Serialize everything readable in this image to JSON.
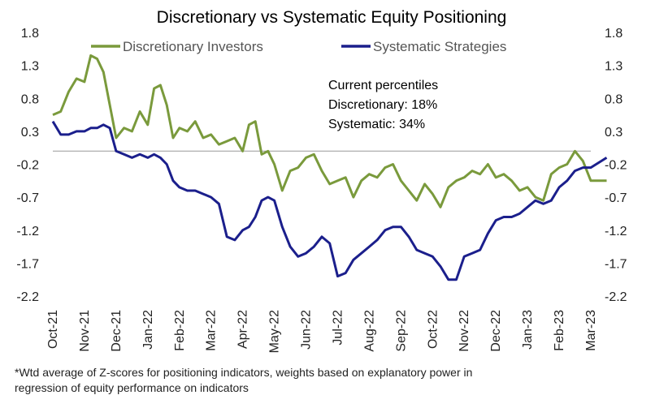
{
  "chart_data": {
    "type": "line",
    "title": "Discretionary  vs Systematic Equity Positioning",
    "ylim": [
      -2.2,
      1.8
    ],
    "yticks": [
      "1.8",
      "1.3",
      "0.8",
      "0.3",
      "-0.2",
      "-0.7",
      "-1.2",
      "-1.7",
      "-2.2"
    ],
    "x_ticks": [
      "Oct-21",
      "Nov-21",
      "Dec-21",
      "Jan-22",
      "Feb-22",
      "Mar-22",
      "Apr-22",
      "May-22",
      "Jun-22",
      "Jul-22",
      "Aug-22",
      "Sep-22",
      "Oct-22",
      "Nov-22",
      "Dec-22",
      "Jan-23",
      "Feb-23",
      "Mar-23"
    ],
    "colors": {
      "discretionary": "#7A9A3C",
      "systematic": "#1B1F8C",
      "zero_line": "#999999"
    },
    "series": [
      {
        "name": "Discretionary Investors",
        "x": [
          "Oct-21",
          "Oct-21",
          "Oct-21",
          "Oct-21",
          "Nov-21",
          "Nov-21",
          "Nov-21",
          "Nov-21",
          "Nov-21",
          "Dec-21",
          "Dec-21",
          "Dec-21",
          "Dec-21",
          "Jan-22",
          "Jan-22",
          "Jan-22",
          "Jan-22",
          "Jan-22",
          "Feb-22",
          "Feb-22",
          "Feb-22",
          "Feb-22",
          "Mar-22",
          "Mar-22",
          "Mar-22",
          "Mar-22",
          "Apr-22",
          "Apr-22",
          "Apr-22",
          "Apr-22",
          "Apr-22",
          "May-22",
          "May-22",
          "May-22",
          "May-22",
          "Jun-22",
          "Jun-22",
          "Jun-22",
          "Jun-22",
          "Jul-22",
          "Jul-22",
          "Jul-22",
          "Jul-22",
          "Aug-22",
          "Aug-22",
          "Aug-22",
          "Aug-22",
          "Sep-22",
          "Sep-22",
          "Sep-22",
          "Sep-22",
          "Oct-22",
          "Oct-22",
          "Oct-22",
          "Oct-22",
          "Nov-22",
          "Nov-22",
          "Nov-22",
          "Nov-22",
          "Dec-22",
          "Dec-22",
          "Dec-22",
          "Dec-22",
          "Jan-23",
          "Jan-23",
          "Jan-23",
          "Jan-23",
          "Feb-23",
          "Feb-23",
          "Feb-23",
          "Feb-23",
          "Mar-23",
          "Mar-23"
        ],
        "values": [
          0.55,
          0.6,
          0.9,
          1.1,
          1.05,
          1.45,
          1.4,
          1.2,
          0.7,
          0.2,
          0.35,
          0.3,
          0.6,
          0.4,
          0.95,
          1.0,
          0.7,
          0.2,
          0.35,
          0.3,
          0.45,
          0.2,
          0.25,
          0.1,
          0.15,
          0.2,
          0.0,
          0.4,
          0.45,
          -0.05,
          0.0,
          -0.2,
          -0.6,
          -0.3,
          -0.25,
          -0.1,
          -0.05,
          -0.3,
          -0.5,
          -0.45,
          -0.4,
          -0.7,
          -0.45,
          -0.35,
          -0.4,
          -0.25,
          -0.2,
          -0.45,
          -0.6,
          -0.75,
          -0.5,
          -0.65,
          -0.85,
          -0.55,
          -0.45,
          -0.4,
          -0.3,
          -0.35,
          -0.2,
          -0.4,
          -0.35,
          -0.45,
          -0.6,
          -0.55,
          -0.7,
          -0.75,
          -0.35,
          -0.25,
          -0.2,
          0.0,
          -0.15,
          -0.45,
          -0.45
        ]
      },
      {
        "name": "Systematic Strategies",
        "x": [
          "Oct-21",
          "Oct-21",
          "Oct-21",
          "Oct-21",
          "Nov-21",
          "Nov-21",
          "Nov-21",
          "Nov-21",
          "Nov-21",
          "Dec-21",
          "Dec-21",
          "Dec-21",
          "Dec-21",
          "Jan-22",
          "Jan-22",
          "Jan-22",
          "Jan-22",
          "Jan-22",
          "Feb-22",
          "Feb-22",
          "Feb-22",
          "Feb-22",
          "Mar-22",
          "Mar-22",
          "Mar-22",
          "Mar-22",
          "Apr-22",
          "Apr-22",
          "Apr-22",
          "Apr-22",
          "Apr-22",
          "May-22",
          "May-22",
          "May-22",
          "May-22",
          "Jun-22",
          "Jun-22",
          "Jun-22",
          "Jun-22",
          "Jul-22",
          "Jul-22",
          "Jul-22",
          "Jul-22",
          "Aug-22",
          "Aug-22",
          "Aug-22",
          "Aug-22",
          "Sep-22",
          "Sep-22",
          "Sep-22",
          "Sep-22",
          "Oct-22",
          "Oct-22",
          "Oct-22",
          "Oct-22",
          "Nov-22",
          "Nov-22",
          "Nov-22",
          "Nov-22",
          "Dec-22",
          "Dec-22",
          "Dec-22",
          "Dec-22",
          "Jan-23",
          "Jan-23",
          "Jan-23",
          "Jan-23",
          "Feb-23",
          "Feb-23",
          "Feb-23",
          "Feb-23",
          "Mar-23",
          "Mar-23"
        ],
        "values": [
          0.45,
          0.25,
          0.25,
          0.3,
          0.3,
          0.35,
          0.35,
          0.4,
          0.35,
          0.0,
          -0.05,
          -0.1,
          -0.05,
          -0.1,
          -0.05,
          -0.1,
          -0.2,
          -0.45,
          -0.55,
          -0.6,
          -0.6,
          -0.65,
          -0.7,
          -0.8,
          -1.3,
          -1.35,
          -1.2,
          -1.15,
          -1.0,
          -0.75,
          -0.7,
          -0.75,
          -1.15,
          -1.45,
          -1.6,
          -1.55,
          -1.45,
          -1.3,
          -1.4,
          -1.9,
          -1.85,
          -1.65,
          -1.55,
          -1.45,
          -1.35,
          -1.2,
          -1.15,
          -1.15,
          -1.3,
          -1.5,
          -1.55,
          -1.6,
          -1.75,
          -1.95,
          -1.95,
          -1.6,
          -1.55,
          -1.5,
          -1.25,
          -1.05,
          -1.0,
          -1.0,
          -0.95,
          -0.85,
          -0.75,
          -0.8,
          -0.75,
          -0.55,
          -0.45,
          -0.3,
          -0.25,
          -0.25,
          -0.1
        ]
      }
    ],
    "annotations": [
      "Current percentiles",
      "Discretionary: 18%",
      "Systematic: 34%"
    ],
    "footnote": [
      "*Wtd average of Z-scores for positioning indicators, weights based on explanatory power in",
      "regression of equity performance on indicators"
    ],
    "legend_position": "top"
  }
}
